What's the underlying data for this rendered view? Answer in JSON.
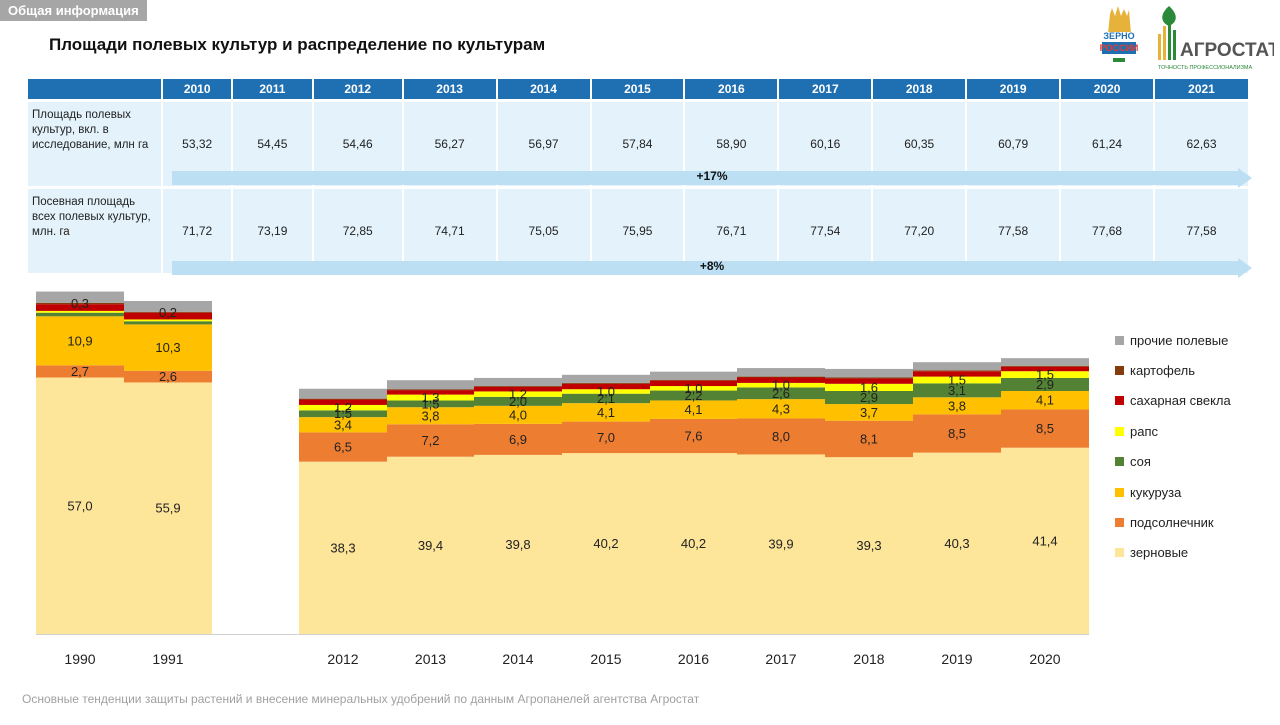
{
  "header": {
    "tag": "Общая информация",
    "title": "Площади полевых культур и распределение по культурам"
  },
  "logos": {
    "zerno_text_1": "ЗЕРНО",
    "zerno_text_2": "РОССИИ",
    "agrostat_name": "АГРОСТАТ",
    "agrostat_tagline": "ТОЧНОСТЬ ПРОФЕССИОНАЛИЗМА"
  },
  "table": {
    "years": [
      "2010",
      "2011",
      "2012",
      "2013",
      "2014",
      "2015",
      "2016",
      "2017",
      "2018",
      "2019",
      "2020",
      "2021"
    ],
    "rows": [
      {
        "label": "Площадь полевых культур, вкл. в исследование, млн га",
        "values": [
          "53,32",
          "54,45",
          "54,46",
          "56,27",
          "56,97",
          "57,84",
          "58,90",
          "60,16",
          "60,35",
          "60,79",
          "61,24",
          "62,63"
        ],
        "growth": "+17%"
      },
      {
        "label": "Посевная площадь всех полевых культур, млн. га",
        "values": [
          "71,72",
          "73,19",
          "72,85",
          "74,71",
          "75,05",
          "75,95",
          "76,71",
          "77,54",
          "77,20",
          "77,58",
          "77,68",
          "77,58"
        ],
        "growth": "+8%"
      }
    ]
  },
  "chart_data": {
    "type": "area",
    "categories": [
      "1990",
      "1991",
      "2012",
      "2013",
      "2014",
      "2015",
      "2016",
      "2017",
      "2018",
      "2019",
      "2020"
    ],
    "series": [
      {
        "name": "зерновые",
        "color": "#fde59a",
        "values": [
          57.0,
          55.9,
          38.3,
          39.4,
          39.8,
          40.2,
          40.2,
          39.9,
          39.3,
          40.3,
          41.4
        ],
        "labels": [
          "57,0",
          "55,9",
          "38,3",
          "39,4",
          "39,8",
          "40,2",
          "40,2",
          "39,9",
          "39,3",
          "40,3",
          "41,4"
        ]
      },
      {
        "name": "подсолнечник",
        "color": "#ed7d31",
        "values": [
          2.7,
          2.6,
          6.5,
          7.2,
          6.9,
          7.0,
          7.6,
          8.0,
          8.1,
          8.5,
          8.5
        ],
        "labels": [
          "2,7",
          "2,6",
          "6,5",
          "7,2",
          "6,9",
          "7,0",
          "7,6",
          "8,0",
          "8,1",
          "8,5",
          "8,5"
        ]
      },
      {
        "name": "кукуруза",
        "color": "#ffc000",
        "values": [
          10.9,
          10.3,
          3.4,
          3.8,
          4.0,
          4.1,
          4.1,
          4.3,
          3.7,
          3.8,
          4.1
        ],
        "labels": [
          "10,9",
          "10,3",
          "3,4",
          "3,8",
          "4,0",
          "4,1",
          "4,1",
          "4,3",
          "3,7",
          "3,8",
          "4,1"
        ]
      },
      {
        "name": "соя",
        "color": "#548235",
        "values": [
          0.8,
          0.7,
          1.5,
          1.5,
          2.0,
          2.1,
          2.2,
          2.6,
          2.9,
          3.1,
          2.9
        ],
        "labels": [
          "",
          "",
          "1,5",
          "1,5",
          "2,0",
          "2,1",
          "2,2",
          "2,6",
          "2,9",
          "3,1",
          "2,9"
        ]
      },
      {
        "name": "рапс",
        "color": "#ffff00",
        "values": [
          0.4,
          0.4,
          1.2,
          1.3,
          1.2,
          1.0,
          1.0,
          1.0,
          1.6,
          1.5,
          1.5
        ],
        "labels": [
          "",
          "",
          "1,2",
          "1,3",
          "1,2",
          "1,0",
          "1,0",
          "1,0",
          "1,6",
          "1,5",
          "1,5"
        ]
      },
      {
        "name": "сахарная свекла",
        "color": "#c00000",
        "values": [
          1.5,
          1.5,
          1.2,
          1.0,
          1.0,
          1.2,
          1.2,
          1.2,
          1.2,
          1.2,
          1.0
        ],
        "labels": [
          "",
          "",
          "",
          "",
          "",
          "",
          "",
          "",
          "",
          "",
          ""
        ]
      },
      {
        "name": "картофель",
        "color": "#843c0c",
        "values": [
          0.3,
          0.2,
          0.2,
          0.2,
          0.2,
          0.2,
          0.2,
          0.2,
          0.2,
          0.2,
          0.2
        ],
        "labels": [
          "0,3",
          "0,2",
          "",
          "",
          "",
          "",
          "",
          "",
          "",
          "",
          ""
        ]
      },
      {
        "name": "прочие полевые",
        "color": "#a6a6a6",
        "values": [
          2.5,
          2.4,
          2.2,
          2.0,
          1.8,
          1.8,
          1.8,
          1.9,
          1.9,
          1.8,
          1.7
        ],
        "labels": [
          "",
          "",
          "",
          "",
          "",
          "",
          "",
          "",
          "",
          "",
          ""
        ]
      }
    ],
    "legend_order": [
      "прочие полевые",
      "картофель",
      "сахарная свекла",
      "рапс",
      "соя",
      "кукуруза",
      "подсолнечник",
      "зерновые"
    ],
    "legend": "right",
    "grid": false,
    "xlabel": "",
    "ylabel": ""
  },
  "footer": "Основные тенденции защиты растений и внесение минеральных удобрений по данным Агропанелей агентства Агростат"
}
